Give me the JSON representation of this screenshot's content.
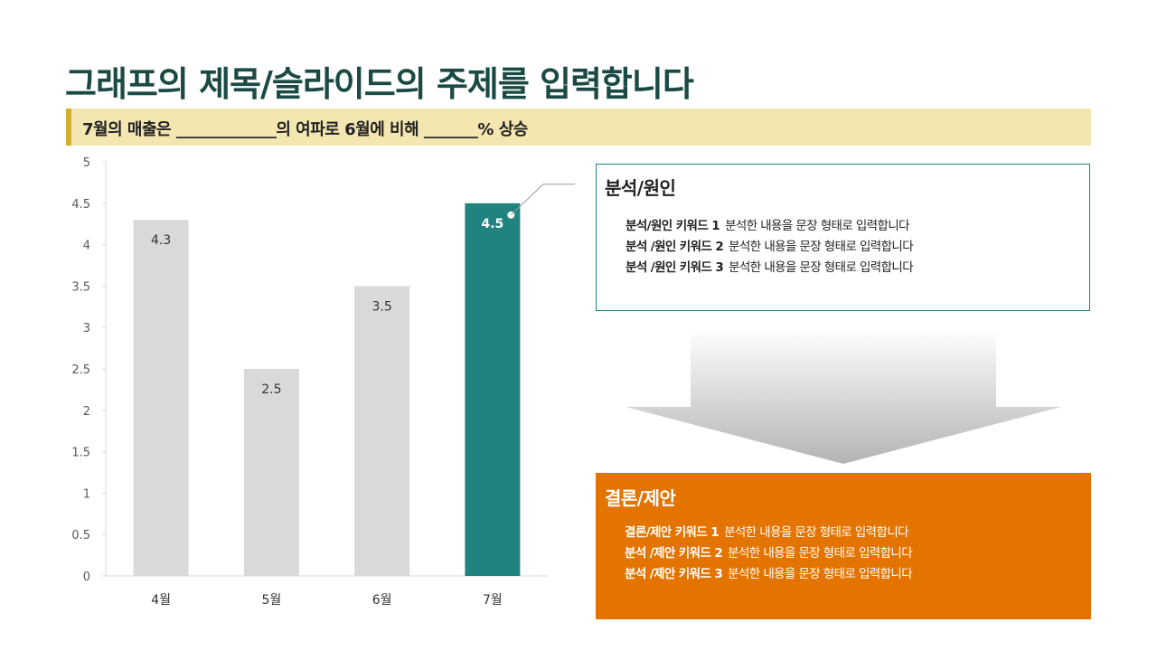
{
  "title": "그래프의 제목/슬라이드의 주제를 입력합니다",
  "subtitle": "7월의 매출은 _____________의 여파로 6월에 비해 _______% 상승",
  "chart_data": {
    "type": "bar",
    "categories": [
      "4월",
      "5월",
      "6월",
      "7월"
    ],
    "values": [
      4.3,
      2.5,
      3.5,
      4.5
    ],
    "data_labels": [
      "4.3",
      "2.5",
      "3.5",
      "4.5"
    ],
    "highlight_index": 3,
    "ylim": [
      0,
      5
    ],
    "y_ticks": [
      "0",
      "0.5",
      "1",
      "1.5",
      "2",
      "2.5",
      "3",
      "3.5",
      "4",
      "4.5",
      "5"
    ],
    "grid": false,
    "colors": {
      "default": "#d9d9d9",
      "highlight": "#218380",
      "label_default": "#333333",
      "label_highlight": "#ffffff"
    },
    "callout": {
      "target_index": 3,
      "text": "분석/원인"
    }
  },
  "analysis": {
    "title": "분석/원인",
    "items": [
      {
        "keyword": "분석/원인 키워드 1",
        "text": "분석한 내용을 문장 형태로 입력합니다"
      },
      {
        "keyword": "분석 /원인 키워드 2",
        "text": "분석한 내용을 문장 형태로 입력합니다"
      },
      {
        "keyword": "분석 /원인 키워드 3",
        "text": "분석한 내용을 문장 형태로 입력합니다"
      }
    ]
  },
  "conclusion": {
    "title": "결론/제안",
    "items": [
      {
        "keyword": "결론/제안 키워드 1",
        "text": "분석한 내용을 문장 형태로 입력합니다"
      },
      {
        "keyword": "분석 /제안 키워드 2",
        "text": "분석한 내용을 문장 형태로 입력합니다"
      },
      {
        "keyword": "분석 /제안 키워드 3",
        "text": "분석한 내용을 문장 형태로 입력합니다"
      }
    ]
  },
  "colors": {
    "title": "#1b4a44",
    "subtitle_bg": "#f4e6b0",
    "subtitle_accent": "#d4b12a",
    "analysis_border": "#1f7f7a",
    "conclusion_bg": "#e37400"
  }
}
